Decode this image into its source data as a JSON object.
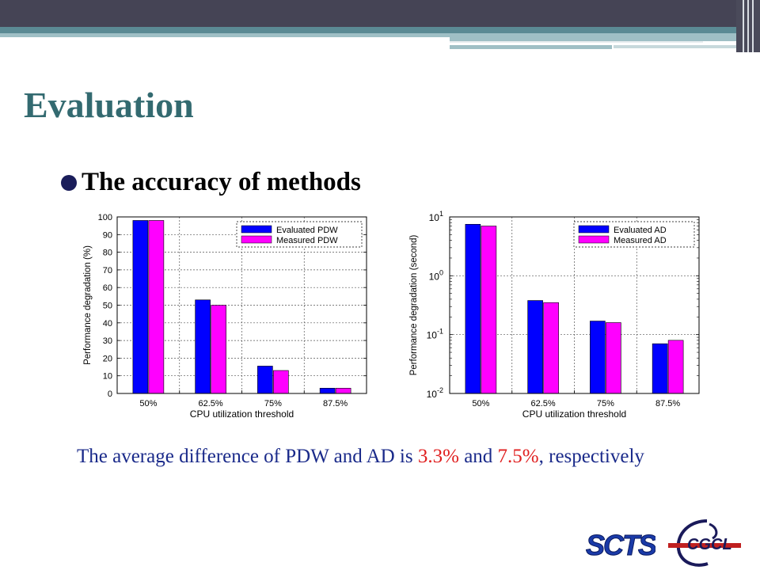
{
  "slide": {
    "title": "Evaluation",
    "bullet": "The accuracy of methods",
    "summary": {
      "prefix": "The average difference of PDW and AD is ",
      "pdw_value": "3.3%",
      "middle": " and ",
      "ad_value": "7.5%",
      "suffix": ", respectively"
    },
    "logos": {
      "left": "SCTS",
      "right": "CGCL"
    }
  },
  "colors": {
    "evaluated": "#0000ff",
    "measured": "#ff00ff",
    "title": "#336a70",
    "summary_text": "#1a2a8a",
    "highlight": "#e02020"
  },
  "chart_data": [
    {
      "type": "bar",
      "categories": [
        "50%",
        "62.5%",
        "75%",
        "87.5%"
      ],
      "series": [
        {
          "name": "Evaluated PDW",
          "values": [
            98,
            53,
            15.5,
            3
          ]
        },
        {
          "name": "Measured PDW",
          "values": [
            98,
            50,
            13,
            3
          ]
        }
      ],
      "xlabel": "CPU utilization threshold",
      "ylabel": "Performance degradation (%)",
      "ylim": [
        0,
        100
      ],
      "yticks": [
        "0",
        "10",
        "20",
        "30",
        "40",
        "50",
        "60",
        "70",
        "80",
        "90",
        "100"
      ],
      "scale": "linear",
      "grid": true,
      "legend": "top-right"
    },
    {
      "type": "bar",
      "categories": [
        "50%",
        "62.5%",
        "75%",
        "87.5%"
      ],
      "series": [
        {
          "name": "Evaluated AD",
          "values": [
            7.5,
            0.38,
            0.17,
            0.07
          ]
        },
        {
          "name": "Measured AD",
          "values": [
            7,
            0.35,
            0.16,
            0.08
          ]
        }
      ],
      "xlabel": "CPU utilization threshold",
      "ylabel": "Performance degradation (second)",
      "ylim": [
        0.01,
        10
      ],
      "yticks": [
        {
          "base": "10",
          "exp": "-2"
        },
        {
          "base": "10",
          "exp": "-1"
        },
        {
          "base": "10",
          "exp": "0"
        },
        {
          "base": "10",
          "exp": "1"
        }
      ],
      "scale": "log",
      "grid": true,
      "legend": "top-right"
    }
  ]
}
